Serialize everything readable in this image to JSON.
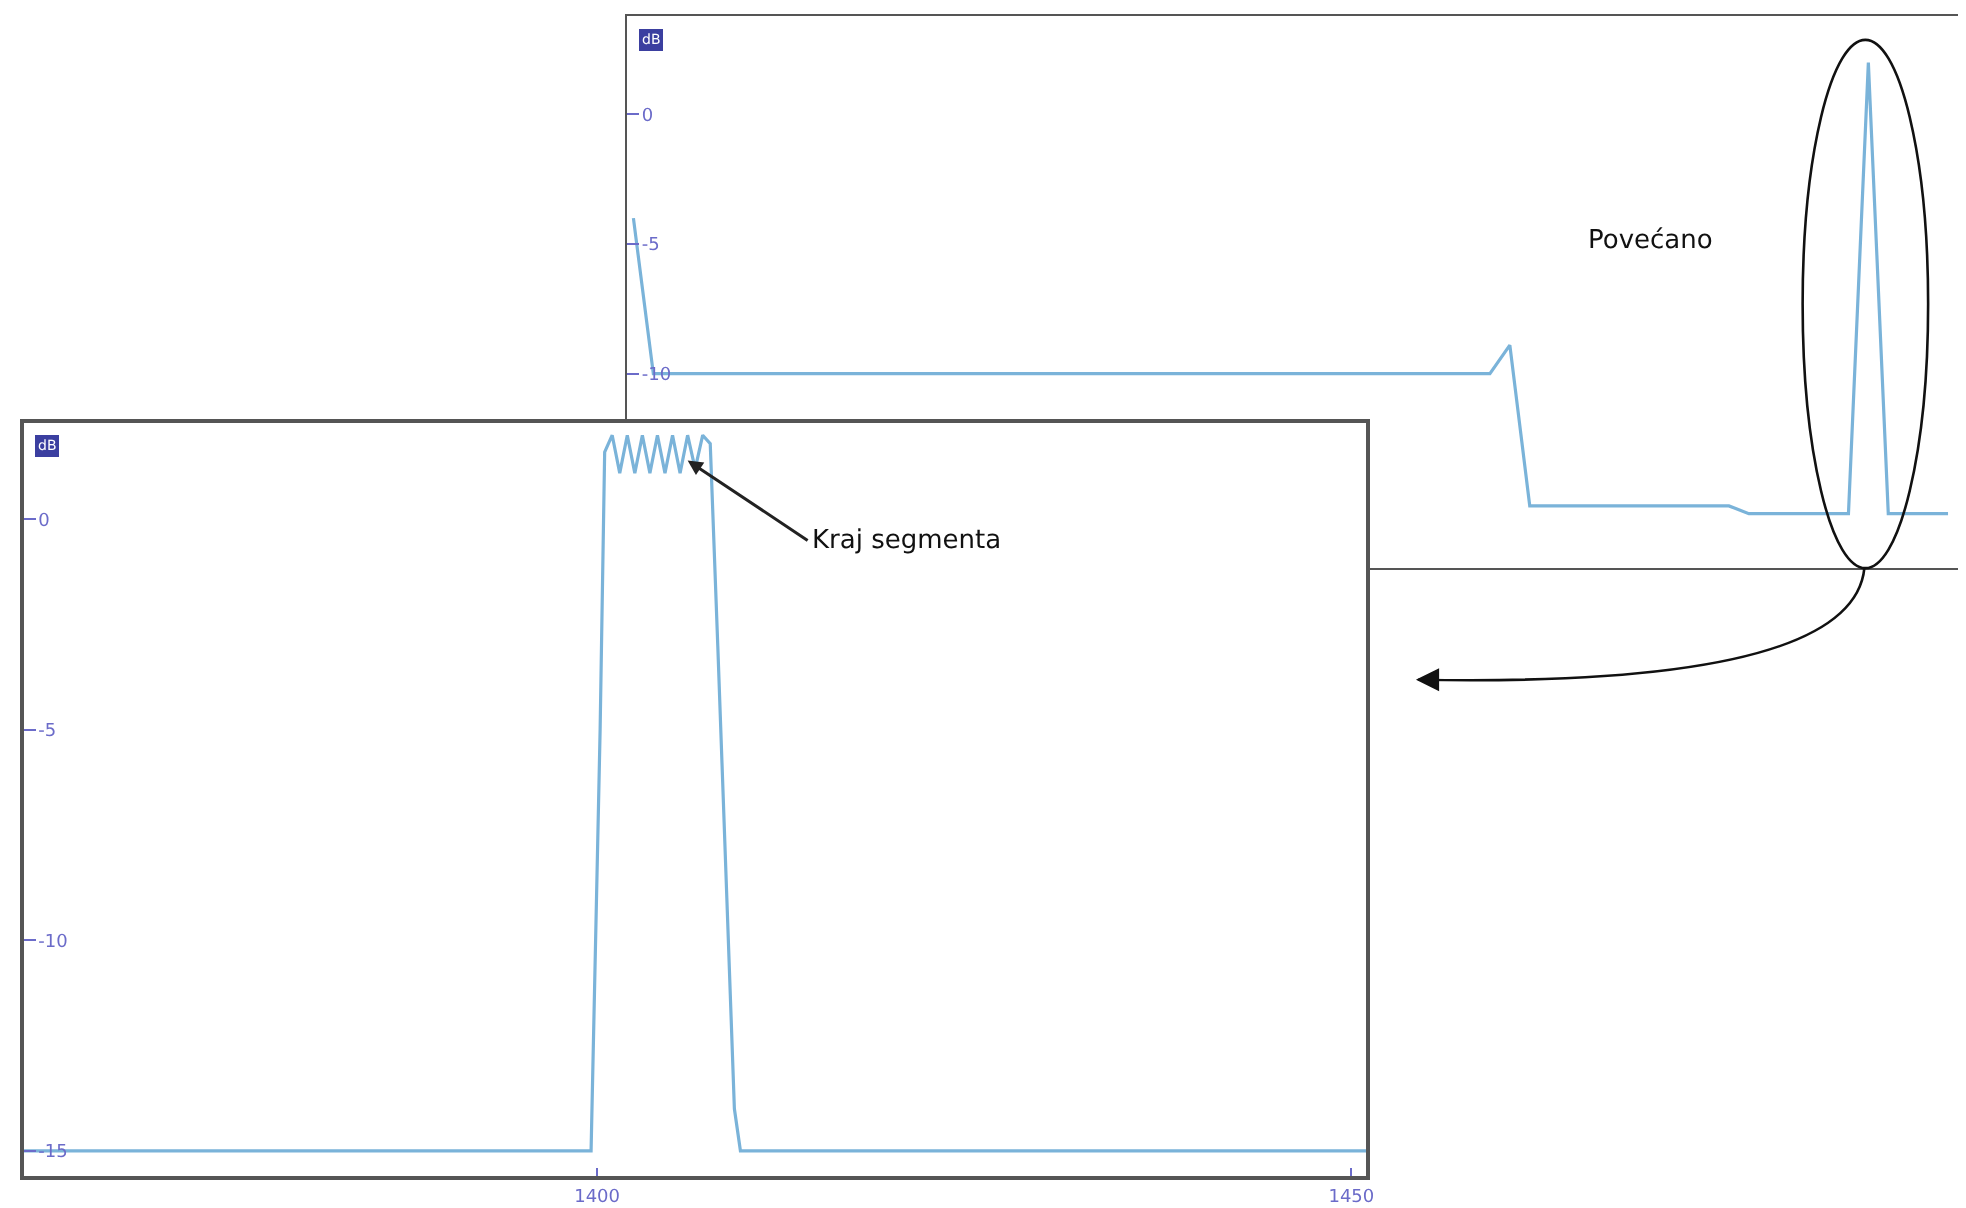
{
  "chart_data": [
    {
      "type": "line",
      "ylabel": "dB",
      "annotations": [
        "Povećano"
      ],
      "tick_labels": "y",
      "categories": [
        null,
        null,
        null,
        null,
        null,
        null,
        null,
        null,
        null,
        null,
        null,
        null,
        null,
        null,
        null,
        null,
        null,
        null,
        null,
        null,
        null,
        null,
        null,
        null,
        null,
        null,
        null,
        null,
        null,
        null,
        null,
        null,
        null,
        null,
        null,
        null,
        null,
        null,
        null,
        null,
        null,
        null,
        null,
        null,
        null,
        null,
        null,
        null,
        null,
        null,
        null,
        null,
        null,
        null,
        null,
        null,
        null,
        null,
        null,
        null,
        null,
        null,
        null,
        null,
        null,
        null,
        null
      ],
      "series": [
        {
          "color": "#7ab3d9",
          "values": [
            -4,
            -10,
            -10,
            -10,
            -10,
            -10,
            -10,
            -10,
            -10,
            -10,
            -10,
            -10,
            -10,
            -10,
            -10,
            -10,
            -10,
            -10,
            -10,
            -10,
            -10,
            -10,
            -10,
            -10,
            -10,
            -10,
            -10,
            -10,
            -10,
            -10,
            -10,
            -10,
            -10,
            -10,
            -10,
            -10,
            -10,
            -10,
            -10,
            -10,
            -10,
            -10,
            -10,
            -10,
            -8.9,
            -15.1,
            -15.1,
            -15.1,
            -15.1,
            -15.1,
            -15.1,
            -15.1,
            -15.1,
            -15.1,
            -15.1,
            -15.1,
            -15.4,
            -15.4,
            -15.4,
            -15.4,
            -15.4,
            -15.4,
            2.0,
            -15.4,
            -15.4,
            -15.4,
            -15.4
          ]
        }
      ],
      "ylim": [
        -17.5,
        3.8
      ],
      "yticks": [
        0,
        -5,
        -10
      ]
    },
    {
      "type": "line",
      "ylabel": "dB",
      "annotations": [
        {
          "text": "Kraj segmenta",
          "x": 1406,
          "y": 1.4
        }
      ],
      "x": [
        1362,
        1380,
        1399.6,
        1400.2,
        1400.5,
        1401,
        1401.5,
        1402,
        1402.5,
        1403,
        1403.5,
        1404,
        1404.5,
        1405,
        1405.5,
        1406,
        1406.5,
        1407,
        1407.5,
        1408,
        1408.6,
        1409.1,
        1409.5,
        1430,
        1451
      ],
      "series": [
        {
          "color": "#7ab3d9",
          "values": [
            -15,
            -15,
            -15,
            -5,
            1.6,
            2.0,
            1.1,
            2.0,
            1.1,
            2.0,
            1.1,
            2.0,
            1.1,
            2.0,
            1.1,
            2.0,
            1.2,
            2.0,
            1.8,
            -3,
            -9,
            -14,
            -15,
            -15,
            -15
          ]
        }
      ],
      "xlim": [
        1362,
        1451
      ],
      "xticks": [
        1400,
        1450
      ],
      "ylim": [
        -15.6,
        2.3
      ],
      "yticks": [
        0,
        -5,
        -10,
        -15
      ]
    }
  ]
}
